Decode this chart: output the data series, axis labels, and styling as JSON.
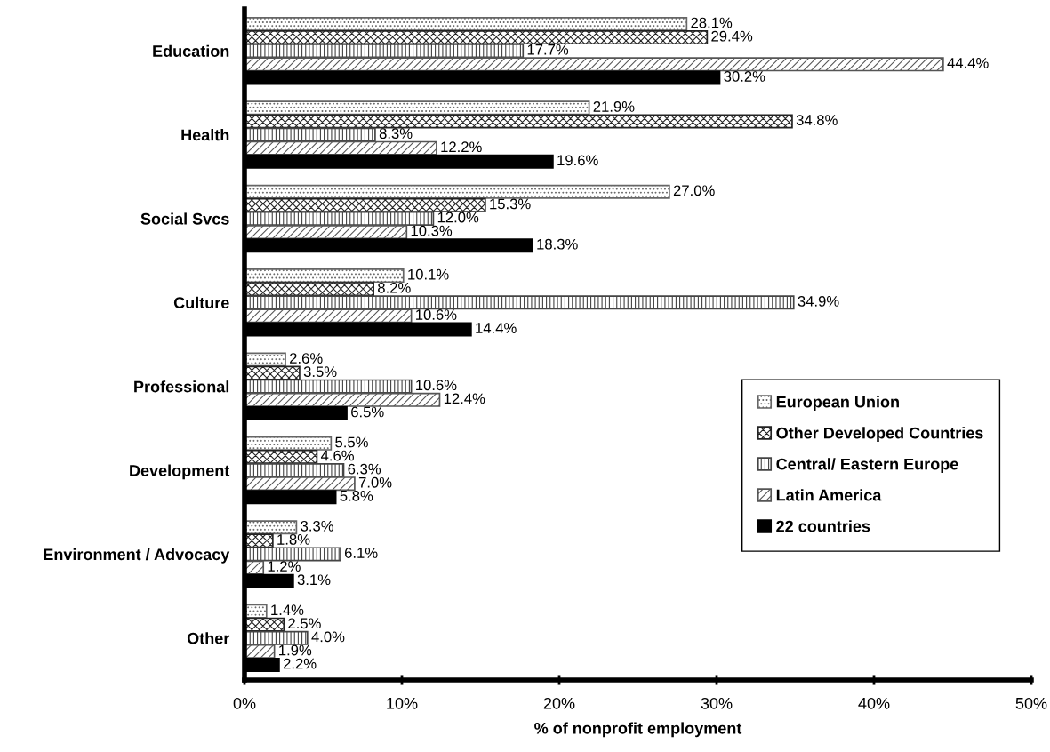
{
  "chart_data": {
    "type": "bar",
    "orientation": "horizontal",
    "xlabel": "% of nonprofit employment",
    "categories": [
      "Education",
      "Health",
      "Social Svcs",
      "Culture",
      "Professional",
      "Development",
      "Environment / Advocacy",
      "Other"
    ],
    "xlim": [
      0,
      50
    ],
    "xticks": [
      {
        "value": 0,
        "label": "0%"
      },
      {
        "value": 10,
        "label": "10%"
      },
      {
        "value": 20,
        "label": "20%"
      },
      {
        "value": 30,
        "label": "30%"
      },
      {
        "value": 40,
        "label": "40%"
      },
      {
        "value": 50,
        "label": "50%"
      }
    ],
    "grid": false,
    "legend": "bottom right",
    "series": [
      {
        "name": "European Union",
        "color": "#666666",
        "values": [
          28.1,
          21.9,
          27.0,
          10.1,
          2.6,
          5.5,
          3.3,
          1.4
        ],
        "value_labels": [
          "28.1%",
          "21.9%",
          "27.0%",
          "10.1%",
          "2.6%",
          "5.5%",
          "3.3%",
          "1.4%"
        ]
      },
      {
        "name": "Other Developed Countries",
        "color": "#222222",
        "values": [
          29.4,
          34.8,
          15.3,
          8.2,
          3.5,
          4.6,
          1.8,
          2.5
        ],
        "value_labels": [
          "29.4%",
          "34.8%",
          "15.3%",
          "8.2%",
          "3.5%",
          "4.6%",
          "1.8%",
          "2.5%"
        ]
      },
      {
        "name": "Central/ Eastern Europe",
        "color": "#444444",
        "values": [
          17.7,
          8.3,
          12.0,
          34.9,
          10.6,
          6.3,
          6.1,
          4.0
        ],
        "value_labels": [
          "17.7%",
          "8.3%",
          "12.0%",
          "34.9%",
          "10.6%",
          "6.3%",
          "6.1%",
          "4.0%"
        ]
      },
      {
        "name": "Latin America",
        "color": "#555555",
        "values": [
          44.4,
          12.2,
          10.3,
          10.6,
          12.4,
          7.0,
          1.2,
          1.9
        ],
        "value_labels": [
          "44.4%",
          "12.2%",
          "10.3%",
          "10.6%",
          "12.4%",
          "7.0%",
          "1.2%",
          "1.9%"
        ]
      },
      {
        "name": "22 countries",
        "color": "#000000",
        "values": [
          30.2,
          19.6,
          18.3,
          14.4,
          6.5,
          5.8,
          3.1,
          2.2
        ],
        "value_labels": [
          "30.2%",
          "19.6%",
          "18.3%",
          "14.4%",
          "6.5%",
          "5.8%",
          "3.1%",
          "2.2%"
        ]
      }
    ]
  }
}
